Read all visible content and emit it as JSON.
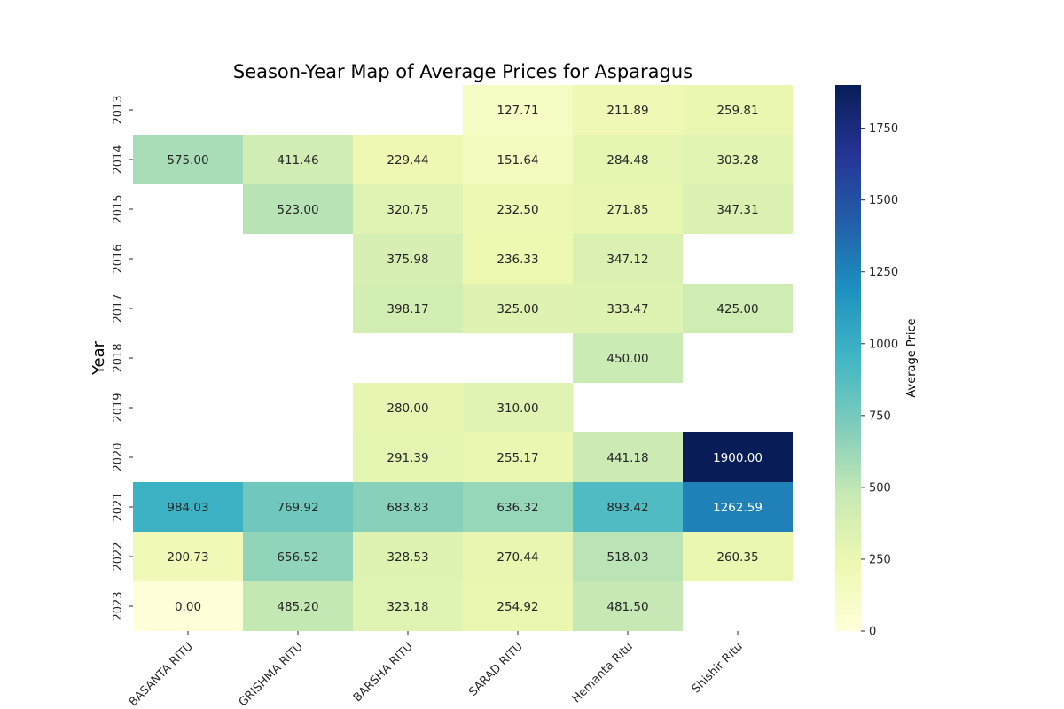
{
  "chart_data": {
    "type": "heatmap",
    "title": "Season-Year Map of Average Prices for Asparagus",
    "xlabel": "",
    "ylabel": "Year",
    "colorbar_label": "Average Price",
    "colormap": "YlGnBu",
    "vmin": 0,
    "vmax": 1900,
    "colorbar_ticks": [
      0,
      250,
      500,
      750,
      1000,
      1250,
      1500,
      1750
    ],
    "columns": [
      "BASANTA RITU",
      "GRISHMA RITU",
      "BARSHA RITU",
      "SARAD RITU",
      "Hemanta Ritu",
      "Shishir Ritu"
    ],
    "rows": [
      "2013",
      "2014",
      "2015",
      "2016",
      "2017",
      "2018",
      "2019",
      "2020",
      "2021",
      "2022",
      "2023"
    ],
    "values": [
      [
        null,
        null,
        null,
        127.71,
        211.89,
        259.81
      ],
      [
        575.0,
        411.46,
        229.44,
        151.64,
        284.48,
        303.28
      ],
      [
        null,
        523.0,
        320.75,
        232.5,
        271.85,
        347.31
      ],
      [
        null,
        null,
        375.98,
        236.33,
        347.12,
        null
      ],
      [
        null,
        null,
        398.17,
        325.0,
        333.47,
        425.0
      ],
      [
        null,
        null,
        null,
        null,
        450.0,
        null
      ],
      [
        null,
        null,
        280.0,
        310.0,
        null,
        null
      ],
      [
        null,
        null,
        291.39,
        255.17,
        441.18,
        1900.0
      ],
      [
        984.03,
        769.92,
        683.83,
        636.32,
        893.42,
        1262.59
      ],
      [
        200.73,
        656.52,
        328.53,
        270.44,
        518.03,
        260.35
      ],
      [
        0.0,
        485.2,
        323.18,
        254.92,
        481.5,
        null
      ]
    ],
    "value_format": "2 decimals"
  }
}
